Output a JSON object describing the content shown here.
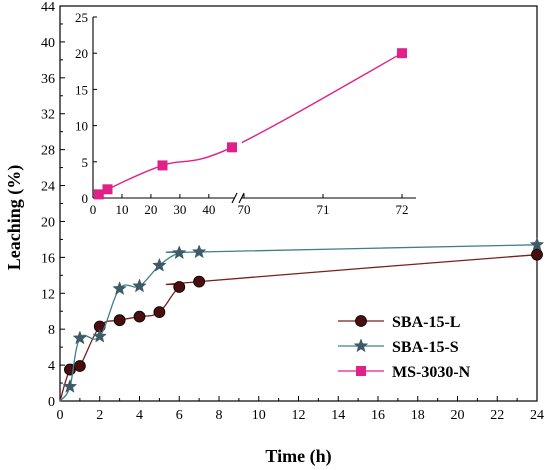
{
  "chart_data": [
    {
      "type": "line",
      "xlabel": "Time (h)",
      "ylabel": "Leaching (%)",
      "xlim": [
        0,
        24
      ],
      "ylim": [
        0,
        44
      ],
      "x_ticks": [
        0,
        2,
        4,
        6,
        8,
        10,
        12,
        14,
        16,
        18,
        20,
        22,
        24
      ],
      "y_ticks": [
        0,
        4,
        8,
        12,
        16,
        20,
        24,
        28,
        32,
        36,
        40,
        44
      ],
      "grid": false,
      "legend_position": "right",
      "series": [
        {
          "name": "SBA-15-L",
          "marker": "circle",
          "color": "#7a1e1e",
          "fill": "#4a0e0e",
          "x": [
            0,
            0.5,
            1,
            2,
            3,
            4,
            5,
            6,
            7,
            24
          ],
          "y": [
            0,
            3.5,
            3.9,
            8.3,
            9.0,
            9.4,
            9.9,
            12.7,
            13.3,
            16.3
          ]
        },
        {
          "name": "SBA-15-S",
          "marker": "star",
          "color": "#3f7f8c",
          "fill": "#3d5a66",
          "x": [
            0,
            0.5,
            1,
            2,
            3,
            4,
            5,
            6,
            7,
            24
          ],
          "y": [
            0,
            1.6,
            7.0,
            7.2,
            12.5,
            12.8,
            15.1,
            16.5,
            16.6,
            17.4
          ]
        },
        {
          "name": "MS-3030-N",
          "marker": "square",
          "color": "#e0218a",
          "fill": "#e0218a",
          "x": [],
          "y": []
        }
      ]
    },
    {
      "type": "line",
      "inset": true,
      "xlim_broken": [
        [
          0,
          48
        ],
        [
          70,
          72
        ]
      ],
      "x_ticks_left": [
        0,
        10,
        20,
        30,
        40
      ],
      "x_ticks_right": [
        70,
        71,
        72
      ],
      "ylim": [
        0,
        25
      ],
      "y_ticks": [
        0,
        5,
        10,
        15,
        20,
        25
      ],
      "series": [
        {
          "name": "MS-3030-N",
          "marker": "square",
          "color": "#e0218a",
          "x": [
            2,
            5,
            24,
            48,
            72
          ],
          "y": [
            0.5,
            1.2,
            4.5,
            7.0,
            20.0
          ]
        }
      ]
    }
  ]
}
